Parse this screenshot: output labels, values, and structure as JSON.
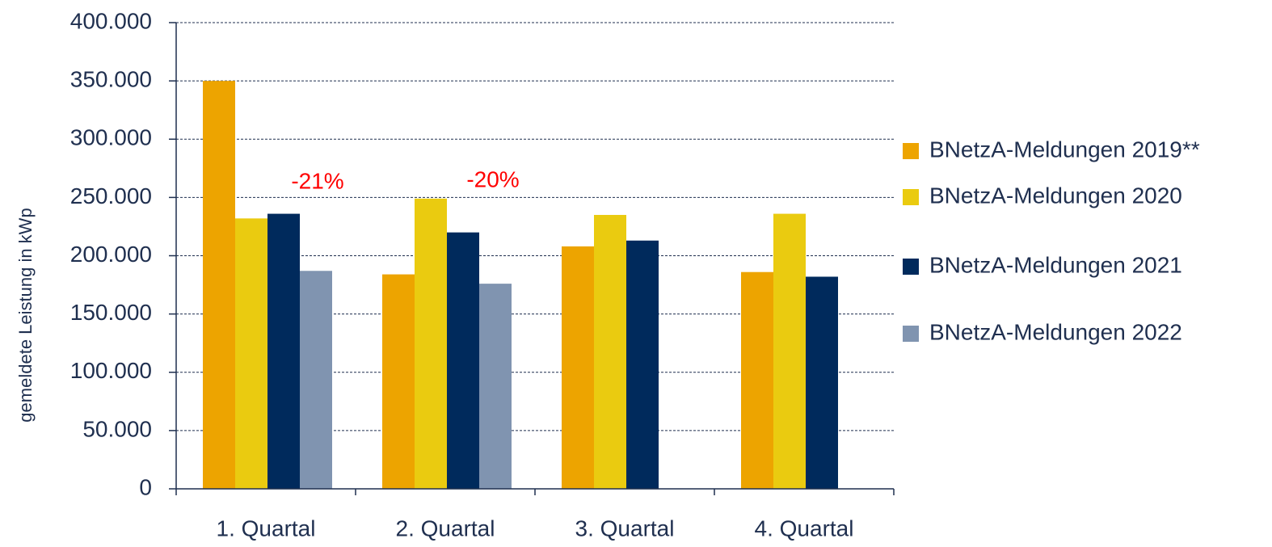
{
  "chart_data": {
    "type": "bar",
    "y_label": "gemeldete Leistung in kWp",
    "categories": [
      "1. Quartal",
      "2. Quartal",
      "3. Quartal",
      "4. Quartal"
    ],
    "series": [
      {
        "name": "BNetzA-Meldungen 2019**",
        "color": "#eda400",
        "values": [
          350000,
          184000,
          208000,
          186000
        ]
      },
      {
        "name": "BNetzA-Meldungen 2020",
        "color": "#eacb10",
        "values": [
          232000,
          249000,
          235000,
          236000
        ]
      },
      {
        "name": "BNetzA-Meldungen 2021",
        "color": "#002a5c",
        "values": [
          236000,
          220000,
          213000,
          182000
        ]
      },
      {
        "name": "BNetzA-Meldungen 2022",
        "color": "#8094b0",
        "values": [
          187000,
          176000,
          null,
          null
        ]
      }
    ],
    "ylim": [
      0,
      400000
    ],
    "yticks": [
      0,
      {
        "value": 50000,
        "label": "50.000"
      },
      {
        "value": 100000,
        "label": "100.000"
      },
      {
        "value": 150000,
        "label": "150.000"
      },
      {
        "value": 200000,
        "label": "200.000"
      },
      {
        "value": 250000,
        "label": "250.000"
      },
      {
        "value": 300000,
        "label": "300.000"
      },
      {
        "value": 350000,
        "label": "350.000"
      },
      {
        "value": 400000,
        "label": "400.000"
      }
    ],
    "grid": true,
    "legend": "right",
    "annotations": [
      {
        "text": "-21%",
        "color": "#ff0000"
      },
      {
        "text": "-20%",
        "color": "#ff0000"
      }
    ]
  }
}
